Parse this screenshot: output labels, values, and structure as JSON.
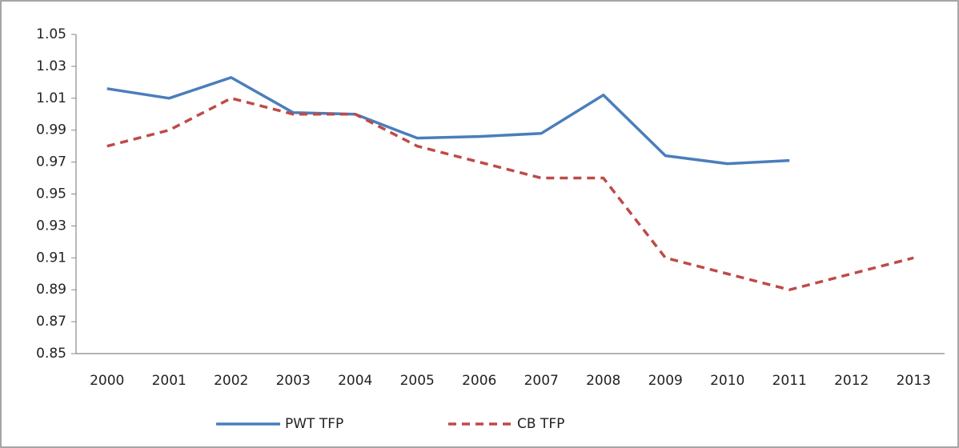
{
  "chart_data": {
    "type": "line",
    "categories": [
      "2000",
      "2001",
      "2002",
      "2003",
      "2004",
      "2005",
      "2006",
      "2007",
      "2008",
      "2009",
      "2010",
      "2011",
      "2012",
      "2013"
    ],
    "series": [
      {
        "name": "PWT TFP",
        "color": "#4a7ebb",
        "dashed": false,
        "values": [
          1.016,
          1.01,
          1.023,
          1.001,
          1.0,
          0.985,
          0.986,
          0.988,
          1.012,
          0.974,
          0.969,
          0.971,
          null,
          null
        ]
      },
      {
        "name": "CB TFP",
        "color": "#be4b48",
        "dashed": true,
        "values": [
          0.98,
          0.99,
          1.01,
          1.0,
          1.0,
          0.98,
          0.97,
          0.96,
          0.96,
          0.91,
          0.9,
          0.89,
          0.9,
          0.91
        ]
      }
    ],
    "ylim": [
      0.85,
      1.05
    ],
    "yticks": [
      0.85,
      0.87,
      0.89,
      0.91,
      0.93,
      0.95,
      0.97,
      0.99,
      1.01,
      1.03,
      1.05
    ],
    "grid": false,
    "legend": "bottom"
  }
}
